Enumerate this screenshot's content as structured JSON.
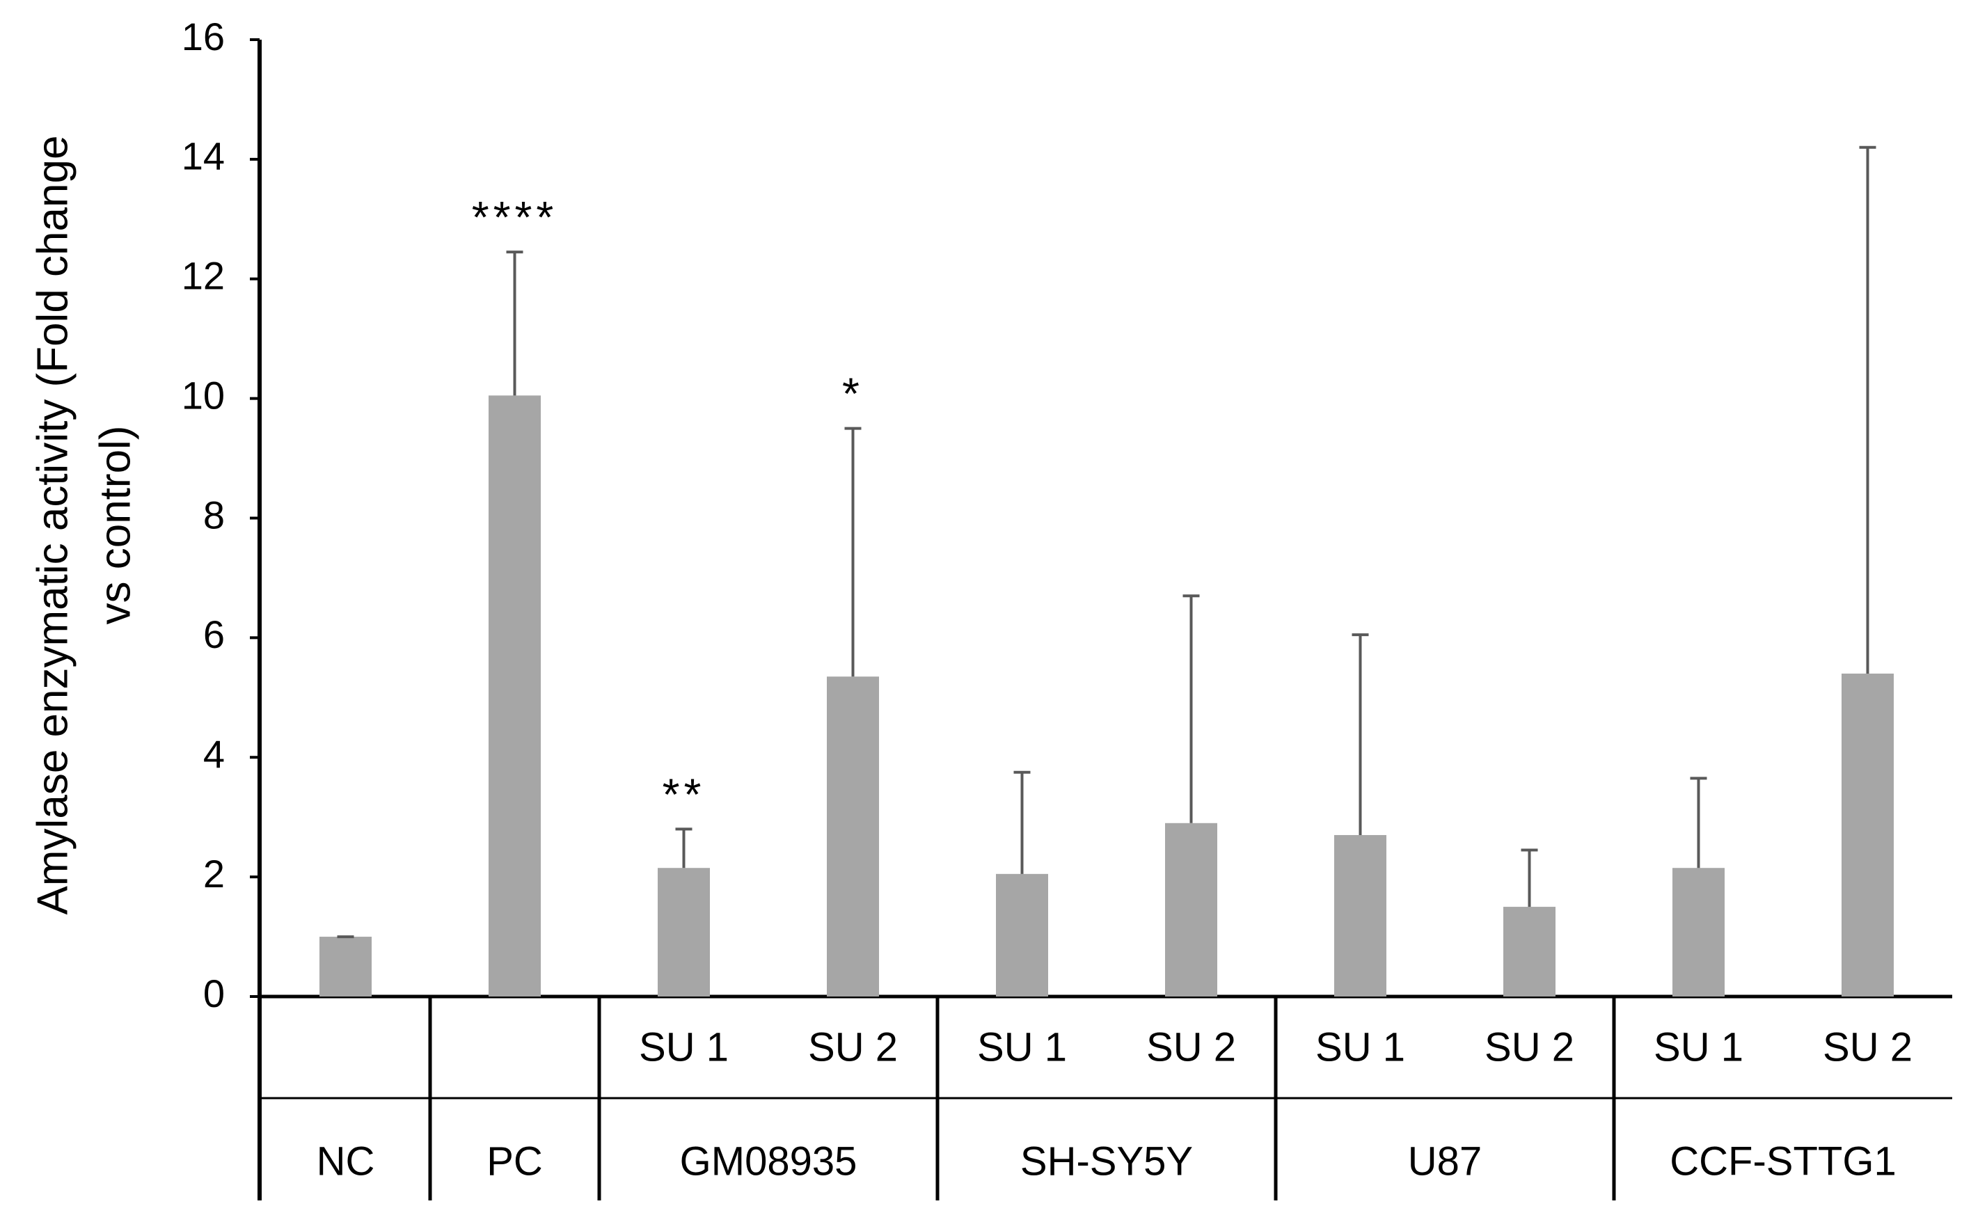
{
  "chart_data": {
    "type": "bar",
    "ylabel_lines": [
      "Amylase enzymatic activity (Fold change",
      "vs control)"
    ],
    "ylim": [
      0,
      16
    ],
    "yticks": [
      "0",
      "2",
      "4",
      "6",
      "8",
      "10",
      "12",
      "14",
      "16"
    ],
    "bars": [
      {
        "group": "NC",
        "sub": "",
        "value": 1.0,
        "error": 0.0,
        "sig": ""
      },
      {
        "group": "PC",
        "sub": "",
        "value": 10.05,
        "error": 2.4,
        "sig": "****"
      },
      {
        "group": "GM08935",
        "sub": "SU 1",
        "value": 2.15,
        "error": 0.65,
        "sig": "**"
      },
      {
        "group": "GM08935",
        "sub": "SU 2",
        "value": 5.35,
        "error": 4.15,
        "sig": "*"
      },
      {
        "group": "SH-SY5Y",
        "sub": "SU 1",
        "value": 2.05,
        "error": 1.7,
        "sig": ""
      },
      {
        "group": "SH-SY5Y",
        "sub": "SU 2",
        "value": 2.9,
        "error": 3.8,
        "sig": ""
      },
      {
        "group": "U87",
        "sub": "SU 1",
        "value": 2.7,
        "error": 3.35,
        "sig": ""
      },
      {
        "group": "U87",
        "sub": "SU 2",
        "value": 1.5,
        "error": 0.95,
        "sig": ""
      },
      {
        "group": "CCF-STTG1",
        "sub": "SU 1",
        "value": 2.15,
        "error": 1.5,
        "sig": ""
      },
      {
        "group": "CCF-STTG1",
        "sub": "SU 2",
        "value": 5.4,
        "error": 8.8,
        "sig": ""
      }
    ],
    "groups": [
      {
        "name": "NC",
        "bars": 1
      },
      {
        "name": "PC",
        "bars": 1
      },
      {
        "name": "GM08935",
        "bars": 2
      },
      {
        "name": "SH-SY5Y",
        "bars": 2
      },
      {
        "name": "U87",
        "bars": 2
      },
      {
        "name": "CCF-STTG1",
        "bars": 2
      }
    ],
    "colors": {
      "bar": "#a6a6a6",
      "axis": "#000000",
      "errorbar": "#595959"
    }
  }
}
